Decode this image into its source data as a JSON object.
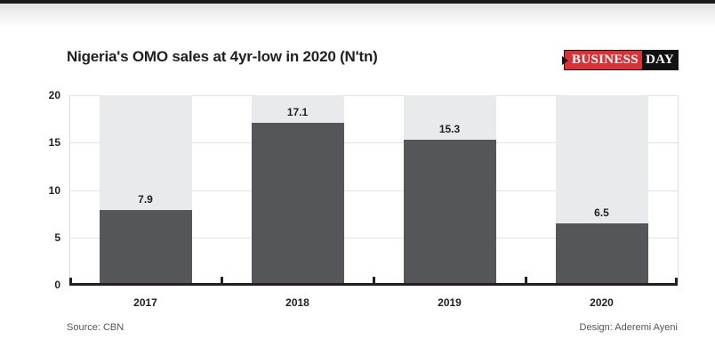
{
  "header": {
    "title": "Nigeria's OMO sales at 4yr-low in 2020 (N'tn)",
    "logo": {
      "part1": "BUSINESS",
      "part2": "DAY",
      "red_color": "#d63238",
      "black_color": "#121212"
    }
  },
  "chart_data": {
    "type": "bar",
    "title": "Nigeria's OMO sales at 4yr-low in 2020 (N'tn)",
    "categories": [
      "2017",
      "2018",
      "2019",
      "2020"
    ],
    "values": [
      7.9,
      17.1,
      15.3,
      6.5
    ],
    "value_labels": [
      "7.9",
      "17.1",
      "15.3",
      "6.5"
    ],
    "xlabel": "",
    "ylabel": "",
    "ylim": [
      0,
      20
    ],
    "yticks": [
      0,
      5,
      10,
      15,
      20
    ],
    "ytick_labels": [
      "0",
      "5",
      "10",
      "15",
      "20"
    ],
    "grid": true,
    "legend": "none",
    "colors": {
      "bar": "#55565a",
      "column_background": "#e9eaec",
      "axis": "#231f20",
      "gridline": "#e2e2e2",
      "label": "#231f20"
    }
  },
  "footer": {
    "source": "Source: CBN",
    "design": "Design: Aderemi Ayeni"
  }
}
